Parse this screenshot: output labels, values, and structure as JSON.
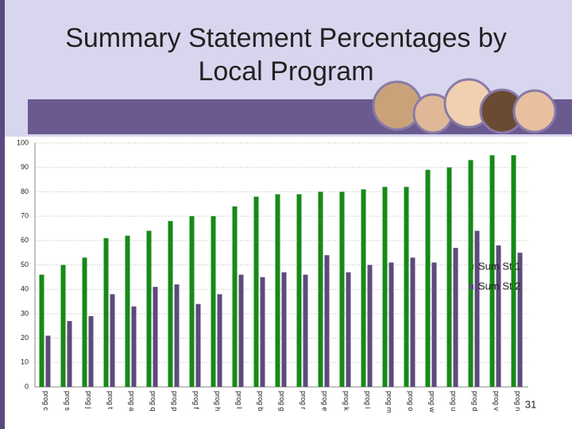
{
  "chart_data": {
    "type": "bar",
    "title": "Summary Statement Percentages by Local Program",
    "page_number": "31",
    "categories": [
      "prog c",
      "prog s",
      "prog j",
      "prog t",
      "prog a",
      "prog q",
      "prog p",
      "prog f",
      "prog h",
      "prog l",
      "prog b",
      "prog g",
      "prog r",
      "prog e",
      "prog k",
      "prog i",
      "prog m",
      "prog o",
      "prog w",
      "prog u",
      "prog d",
      "prog v",
      "prog n"
    ],
    "series": [
      {
        "name": "Sum St 1",
        "color": "#168a16",
        "values": [
          46,
          50,
          53,
          61,
          62,
          64,
          68,
          70,
          70,
          74,
          78,
          79,
          79,
          80,
          80,
          81,
          82,
          82,
          89,
          90,
          93,
          95,
          95
        ]
      },
      {
        "name": "Sum St 2",
        "color": "#5e4a7c",
        "values": [
          21,
          27,
          29,
          38,
          33,
          41,
          42,
          34,
          38,
          46,
          45,
          47,
          46,
          54,
          47,
          50,
          51,
          53,
          51,
          57,
          64,
          58,
          55
        ]
      }
    ],
    "ylim": [
      0,
      100
    ],
    "yticks": [
      0,
      10,
      20,
      30,
      40,
      50,
      60,
      70,
      80,
      90,
      100
    ],
    "grid": true,
    "legend": "right"
  }
}
